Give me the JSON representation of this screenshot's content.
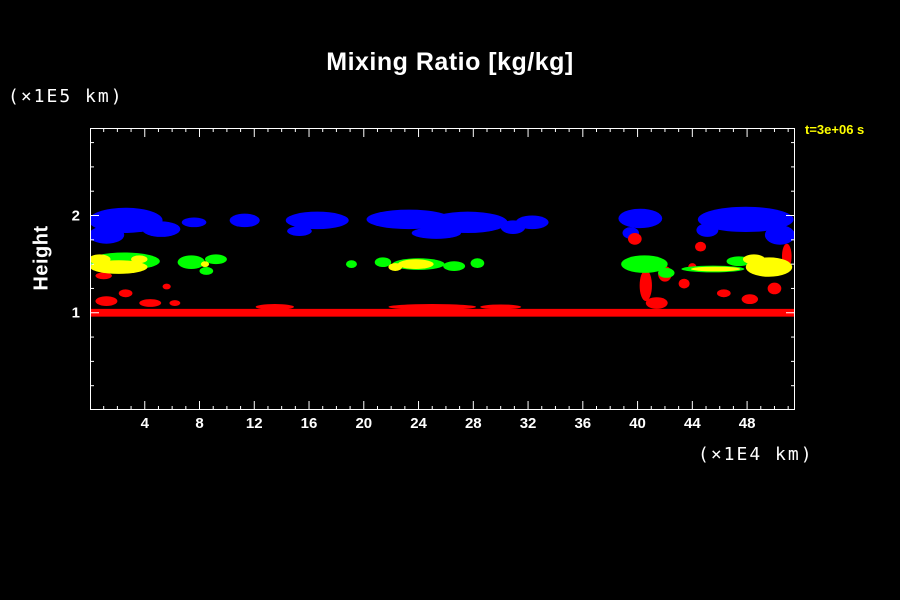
{
  "title": "Mixing Ratio [kg/kg]",
  "axis": {
    "y_units_label": "(×1E5 km)",
    "x_units_label": "(×1E4 km)",
    "y_axis_title": "Height",
    "time_annotation": "t=3e+06 s"
  },
  "chart_data": {
    "type": "filled_contour",
    "title": "Mixing Ratio [kg/kg]",
    "xlabel": "(×1E4 km)",
    "ylabel": "Height (×1E5 km)",
    "annotation": "t=3e+06 s",
    "xlim": [
      0,
      51.5
    ],
    "ylim": [
      0,
      2.9
    ],
    "x_ticks": [
      4,
      8,
      12,
      16,
      20,
      24,
      28,
      32,
      36,
      40,
      44,
      48
    ],
    "x_minor_step": 1,
    "y_ticks": [
      1,
      2
    ],
    "y_minor_step": 0.25,
    "grid": false,
    "legend": "none",
    "colors": {
      "background": "#000000",
      "axes": "#ffffff",
      "annotation": "#ffff00",
      "level_surface": "#ff0000",
      "level_low_cloud": "#ffff00",
      "level_mid_cloud": "#00ff00",
      "level_high_cloud": "#0000ff"
    },
    "regions": [
      {
        "shape": "rect",
        "color": "#ff0000",
        "x0": 0.0,
        "x1": 51.5,
        "y0": 0.96,
        "y1": 1.04
      },
      {
        "shape": "ellipse",
        "color": "#0000ff",
        "x": 2.6,
        "y": 1.95,
        "rx": 2.7,
        "ry": 0.13
      },
      {
        "shape": "ellipse",
        "color": "#0000ff",
        "x": 1.2,
        "y": 1.8,
        "rx": 1.3,
        "ry": 0.09
      },
      {
        "shape": "ellipse",
        "color": "#0000ff",
        "x": 5.2,
        "y": 1.86,
        "rx": 1.4,
        "ry": 0.08
      },
      {
        "shape": "ellipse",
        "color": "#0000ff",
        "x": 7.6,
        "y": 1.93,
        "rx": 0.9,
        "ry": 0.05
      },
      {
        "shape": "ellipse",
        "color": "#0000ff",
        "x": 11.3,
        "y": 1.95,
        "rx": 1.1,
        "ry": 0.07
      },
      {
        "shape": "ellipse",
        "color": "#0000ff",
        "x": 16.6,
        "y": 1.95,
        "rx": 2.3,
        "ry": 0.09
      },
      {
        "shape": "ellipse",
        "color": "#0000ff",
        "x": 15.3,
        "y": 1.84,
        "rx": 0.9,
        "ry": 0.05
      },
      {
        "shape": "ellipse",
        "color": "#0000ff",
        "x": 23.3,
        "y": 1.96,
        "rx": 3.1,
        "ry": 0.1
      },
      {
        "shape": "ellipse",
        "color": "#0000ff",
        "x": 27.6,
        "y": 1.93,
        "rx": 2.9,
        "ry": 0.11
      },
      {
        "shape": "ellipse",
        "color": "#0000ff",
        "x": 25.3,
        "y": 1.82,
        "rx": 1.8,
        "ry": 0.06
      },
      {
        "shape": "ellipse",
        "color": "#0000ff",
        "x": 30.9,
        "y": 1.88,
        "rx": 0.9,
        "ry": 0.07
      },
      {
        "shape": "ellipse",
        "color": "#0000ff",
        "x": 32.3,
        "y": 1.93,
        "rx": 1.2,
        "ry": 0.07
      },
      {
        "shape": "ellipse",
        "color": "#0000ff",
        "x": 40.2,
        "y": 1.97,
        "rx": 1.6,
        "ry": 0.1
      },
      {
        "shape": "ellipse",
        "color": "#0000ff",
        "x": 39.5,
        "y": 1.82,
        "rx": 0.6,
        "ry": 0.06
      },
      {
        "shape": "ellipse",
        "color": "#0000ff",
        "x": 47.9,
        "y": 1.96,
        "rx": 3.5,
        "ry": 0.13
      },
      {
        "shape": "ellipse",
        "color": "#0000ff",
        "x": 50.4,
        "y": 1.8,
        "rx": 1.1,
        "ry": 0.1
      },
      {
        "shape": "ellipse",
        "color": "#0000ff",
        "x": 45.1,
        "y": 1.85,
        "rx": 0.8,
        "ry": 0.07
      },
      {
        "shape": "ellipse",
        "color": "#ff0000",
        "x": 1.2,
        "y": 1.12,
        "rx": 0.8,
        "ry": 0.05
      },
      {
        "shape": "ellipse",
        "color": "#ff0000",
        "x": 2.6,
        "y": 1.2,
        "rx": 0.5,
        "ry": 0.04
      },
      {
        "shape": "ellipse",
        "color": "#ff0000",
        "x": 4.4,
        "y": 1.1,
        "rx": 0.8,
        "ry": 0.04
      },
      {
        "shape": "ellipse",
        "color": "#ff0000",
        "x": 6.2,
        "y": 1.1,
        "rx": 0.4,
        "ry": 0.03
      },
      {
        "shape": "ellipse",
        "color": "#ff0000",
        "x": 5.6,
        "y": 1.27,
        "rx": 0.3,
        "ry": 0.03
      },
      {
        "shape": "ellipse",
        "color": "#ff0000",
        "x": 1.0,
        "y": 1.38,
        "rx": 0.6,
        "ry": 0.035
      },
      {
        "shape": "ellipse",
        "color": "#ff0000",
        "x": 13.5,
        "y": 1.06,
        "rx": 1.4,
        "ry": 0.03
      },
      {
        "shape": "ellipse",
        "color": "#ff0000",
        "x": 25.0,
        "y": 1.06,
        "rx": 3.2,
        "ry": 0.03
      },
      {
        "shape": "ellipse",
        "color": "#ff0000",
        "x": 30.0,
        "y": 1.06,
        "rx": 1.5,
        "ry": 0.025
      },
      {
        "shape": "ellipse",
        "color": "#ff0000",
        "x": 39.8,
        "y": 1.76,
        "rx": 0.5,
        "ry": 0.06
      },
      {
        "shape": "ellipse",
        "color": "#ff0000",
        "x": 40.6,
        "y": 1.28,
        "rx": 0.45,
        "ry": 0.16
      },
      {
        "shape": "ellipse",
        "color": "#ff0000",
        "x": 41.4,
        "y": 1.1,
        "rx": 0.8,
        "ry": 0.06
      },
      {
        "shape": "ellipse",
        "color": "#ff0000",
        "x": 42.0,
        "y": 1.4,
        "rx": 0.5,
        "ry": 0.08
      },
      {
        "shape": "ellipse",
        "color": "#ff0000",
        "x": 43.4,
        "y": 1.3,
        "rx": 0.4,
        "ry": 0.05
      },
      {
        "shape": "ellipse",
        "color": "#ff0000",
        "x": 44.0,
        "y": 1.47,
        "rx": 0.3,
        "ry": 0.04
      },
      {
        "shape": "ellipse",
        "color": "#ff0000",
        "x": 44.6,
        "y": 1.68,
        "rx": 0.4,
        "ry": 0.05
      },
      {
        "shape": "ellipse",
        "color": "#ff0000",
        "x": 46.3,
        "y": 1.2,
        "rx": 0.5,
        "ry": 0.04
      },
      {
        "shape": "ellipse",
        "color": "#ff0000",
        "x": 48.2,
        "y": 1.14,
        "rx": 0.6,
        "ry": 0.05
      },
      {
        "shape": "ellipse",
        "color": "#ff0000",
        "x": 50.0,
        "y": 1.25,
        "rx": 0.5,
        "ry": 0.06
      },
      {
        "shape": "ellipse",
        "color": "#ff0000",
        "x": 50.9,
        "y": 1.58,
        "rx": 0.35,
        "ry": 0.13
      },
      {
        "shape": "ellipse",
        "color": "#00ff00",
        "x": 2.5,
        "y": 1.53,
        "rx": 2.6,
        "ry": 0.09
      },
      {
        "shape": "ellipse",
        "color": "#00ff00",
        "x": 7.4,
        "y": 1.52,
        "rx": 1.0,
        "ry": 0.07
      },
      {
        "shape": "ellipse",
        "color": "#00ff00",
        "x": 9.2,
        "y": 1.55,
        "rx": 0.8,
        "ry": 0.05
      },
      {
        "shape": "ellipse",
        "color": "#00ff00",
        "x": 8.5,
        "y": 1.43,
        "rx": 0.5,
        "ry": 0.04
      },
      {
        "shape": "ellipse",
        "color": "#00ff00",
        "x": 19.1,
        "y": 1.5,
        "rx": 0.4,
        "ry": 0.04
      },
      {
        "shape": "ellipse",
        "color": "#00ff00",
        "x": 21.4,
        "y": 1.52,
        "rx": 0.6,
        "ry": 0.05
      },
      {
        "shape": "ellipse",
        "color": "#00ff00",
        "x": 24.0,
        "y": 1.5,
        "rx": 1.9,
        "ry": 0.06
      },
      {
        "shape": "ellipse",
        "color": "#00ff00",
        "x": 26.6,
        "y": 1.48,
        "rx": 0.8,
        "ry": 0.05
      },
      {
        "shape": "ellipse",
        "color": "#00ff00",
        "x": 28.3,
        "y": 1.51,
        "rx": 0.5,
        "ry": 0.05
      },
      {
        "shape": "ellipse",
        "color": "#00ff00",
        "x": 40.5,
        "y": 1.5,
        "rx": 1.7,
        "ry": 0.09
      },
      {
        "shape": "ellipse",
        "color": "#00ff00",
        "x": 42.1,
        "y": 1.41,
        "rx": 0.6,
        "ry": 0.05
      },
      {
        "shape": "ellipse",
        "color": "#00ff00",
        "x": 45.5,
        "y": 1.45,
        "rx": 2.3,
        "ry": 0.035
      },
      {
        "shape": "ellipse",
        "color": "#00ff00",
        "x": 47.4,
        "y": 1.53,
        "rx": 0.9,
        "ry": 0.05
      },
      {
        "shape": "ellipse",
        "color": "#ffff00",
        "x": 2.1,
        "y": 1.47,
        "rx": 2.1,
        "ry": 0.07
      },
      {
        "shape": "ellipse",
        "color": "#ffff00",
        "x": 0.7,
        "y": 1.55,
        "rx": 0.8,
        "ry": 0.05
      },
      {
        "shape": "ellipse",
        "color": "#ffff00",
        "x": 3.6,
        "y": 1.55,
        "rx": 0.6,
        "ry": 0.04
      },
      {
        "shape": "ellipse",
        "color": "#ffff00",
        "x": 8.4,
        "y": 1.5,
        "rx": 0.3,
        "ry": 0.03
      },
      {
        "shape": "ellipse",
        "color": "#ffff00",
        "x": 23.8,
        "y": 1.5,
        "rx": 1.3,
        "ry": 0.05
      },
      {
        "shape": "ellipse",
        "color": "#ffff00",
        "x": 22.3,
        "y": 1.47,
        "rx": 0.5,
        "ry": 0.04
      },
      {
        "shape": "ellipse",
        "color": "#ffff00",
        "x": 45.7,
        "y": 1.45,
        "rx": 1.8,
        "ry": 0.025
      },
      {
        "shape": "ellipse",
        "color": "#ffff00",
        "x": 49.6,
        "y": 1.47,
        "rx": 1.7,
        "ry": 0.1
      },
      {
        "shape": "ellipse",
        "color": "#ffff00",
        "x": 48.5,
        "y": 1.55,
        "rx": 0.8,
        "ry": 0.05
      }
    ]
  }
}
